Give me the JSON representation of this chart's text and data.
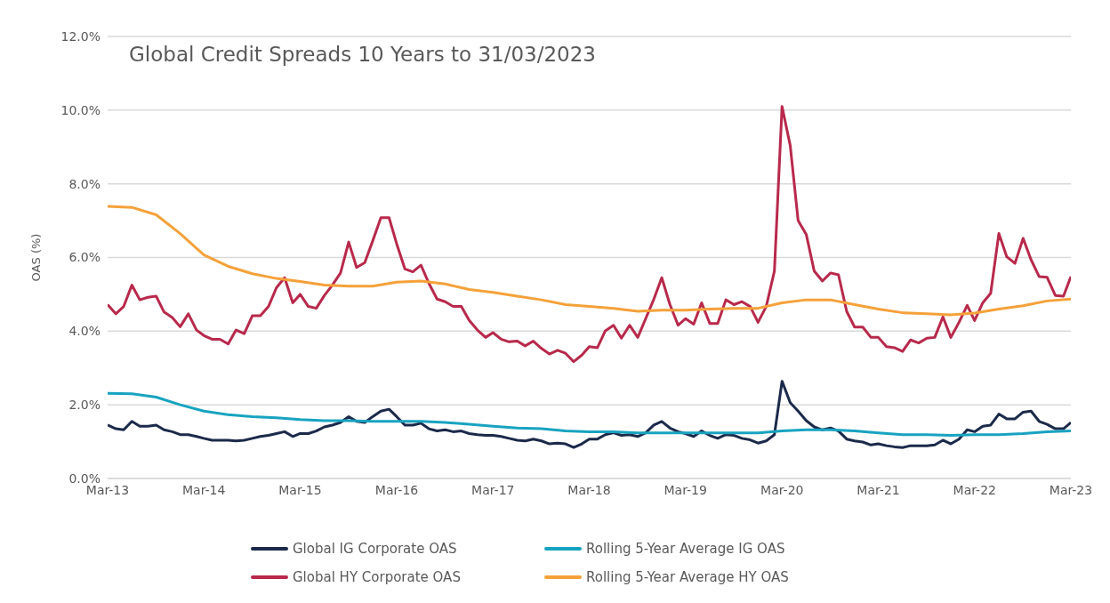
{
  "chart_data": {
    "type": "line",
    "title": "Global Credit Spreads 10 Years to 31/03/2023",
    "ylabel": "OAS (%)",
    "x": [
      "2013-03",
      "2013-04",
      "2013-05",
      "2013-06",
      "2013-07",
      "2013-08",
      "2013-09",
      "2013-10",
      "2013-11",
      "2013-12",
      "2014-01",
      "2014-02",
      "2014-03",
      "2014-04",
      "2014-05",
      "2014-06",
      "2014-07",
      "2014-08",
      "2014-09",
      "2014-10",
      "2014-11",
      "2014-12",
      "2015-01",
      "2015-02",
      "2015-03",
      "2015-04",
      "2015-05",
      "2015-06",
      "2015-07",
      "2015-08",
      "2015-09",
      "2015-10",
      "2015-11",
      "2015-12",
      "2016-01",
      "2016-02",
      "2016-03",
      "2016-04",
      "2016-05",
      "2016-06",
      "2016-07",
      "2016-08",
      "2016-09",
      "2016-10",
      "2016-11",
      "2016-12",
      "2017-01",
      "2017-02",
      "2017-03",
      "2017-04",
      "2017-05",
      "2017-06",
      "2017-07",
      "2017-08",
      "2017-09",
      "2017-10",
      "2017-11",
      "2017-12",
      "2018-01",
      "2018-02",
      "2018-03",
      "2018-04",
      "2018-05",
      "2018-06",
      "2018-07",
      "2018-08",
      "2018-09",
      "2018-10",
      "2018-11",
      "2018-12",
      "2019-01",
      "2019-02",
      "2019-03",
      "2019-04",
      "2019-05",
      "2019-06",
      "2019-07",
      "2019-08",
      "2019-09",
      "2019-10",
      "2019-11",
      "2019-12",
      "2020-01",
      "2020-02",
      "2020-03",
      "2020-04",
      "2020-05",
      "2020-06",
      "2020-07",
      "2020-08",
      "2020-09",
      "2020-10",
      "2020-11",
      "2020-12",
      "2021-01",
      "2021-02",
      "2021-03",
      "2021-04",
      "2021-05",
      "2021-06",
      "2021-07",
      "2021-08",
      "2021-09",
      "2021-10",
      "2021-11",
      "2021-12",
      "2022-01",
      "2022-02",
      "2022-03",
      "2022-04",
      "2022-05",
      "2022-06",
      "2022-07",
      "2022-08",
      "2022-09",
      "2022-10",
      "2022-11",
      "2022-12",
      "2023-01",
      "2023-02",
      "2023-03"
    ],
    "series": [
      {
        "name": "Global IG Corporate OAS",
        "color": "#1b2a4a",
        "values": [
          1.45,
          1.35,
          1.32,
          1.55,
          1.42,
          1.42,
          1.45,
          1.32,
          1.27,
          1.19,
          1.19,
          1.14,
          1.09,
          1.04,
          1.04,
          1.04,
          1.02,
          1.04,
          1.09,
          1.14,
          1.17,
          1.22,
          1.27,
          1.14,
          1.22,
          1.22,
          1.29,
          1.4,
          1.45,
          1.52,
          1.68,
          1.55,
          1.52,
          1.68,
          1.83,
          1.88,
          1.68,
          1.45,
          1.45,
          1.5,
          1.35,
          1.29,
          1.32,
          1.27,
          1.29,
          1.22,
          1.19,
          1.17,
          1.17,
          1.14,
          1.09,
          1.04,
          1.02,
          1.07,
          1.02,
          0.94,
          0.96,
          0.94,
          0.84,
          0.94,
          1.07,
          1.07,
          1.19,
          1.24,
          1.17,
          1.19,
          1.14,
          1.24,
          1.45,
          1.55,
          1.37,
          1.27,
          1.22,
          1.14,
          1.29,
          1.17,
          1.09,
          1.19,
          1.17,
          1.09,
          1.05,
          0.96,
          1.02,
          1.19,
          2.64,
          2.06,
          1.83,
          1.57,
          1.4,
          1.32,
          1.37,
          1.29,
          1.07,
          1.02,
          0.99,
          0.91,
          0.94,
          0.89,
          0.86,
          0.84,
          0.89,
          0.89,
          0.89,
          0.91,
          1.04,
          0.94,
          1.07,
          1.32,
          1.27,
          1.42,
          1.45,
          1.75,
          1.62,
          1.62,
          1.8,
          1.83,
          1.55,
          1.47,
          1.35,
          1.35,
          1.52
        ]
      },
      {
        "name": "Rolling 5-Year Average IG OAS",
        "color": "#18a3c0",
        "x": [
          "2013-03",
          "2013-06",
          "2013-09",
          "2013-12",
          "2014-03",
          "2014-06",
          "2014-09",
          "2014-12",
          "2015-03",
          "2015-06",
          "2015-09",
          "2015-12",
          "2016-03",
          "2016-06",
          "2016-09",
          "2016-12",
          "2017-03",
          "2017-06",
          "2017-09",
          "2017-12",
          "2018-03",
          "2018-06",
          "2018-09",
          "2018-12",
          "2019-03",
          "2019-06",
          "2019-09",
          "2019-12",
          "2020-03",
          "2020-06",
          "2020-09",
          "2020-12",
          "2021-03",
          "2021-06",
          "2021-09",
          "2021-12",
          "2022-03",
          "2022-06",
          "2022-09",
          "2022-12",
          "2023-03"
        ],
        "values": [
          2.31,
          2.3,
          2.21,
          2.0,
          1.83,
          1.73,
          1.68,
          1.65,
          1.6,
          1.57,
          1.57,
          1.55,
          1.55,
          1.55,
          1.52,
          1.47,
          1.42,
          1.37,
          1.35,
          1.29,
          1.27,
          1.27,
          1.24,
          1.24,
          1.24,
          1.24,
          1.24,
          1.24,
          1.29,
          1.32,
          1.32,
          1.29,
          1.24,
          1.19,
          1.19,
          1.17,
          1.19,
          1.19,
          1.22,
          1.27,
          1.29
        ]
      },
      {
        "name": "Global HY Corporate OAS",
        "color": "#b8294b",
        "values": [
          4.72,
          4.47,
          4.67,
          5.25,
          4.85,
          4.92,
          4.95,
          4.52,
          4.37,
          4.12,
          4.47,
          4.03,
          3.88,
          3.78,
          3.78,
          3.65,
          4.03,
          3.93,
          4.42,
          4.42,
          4.67,
          5.18,
          5.45,
          4.77,
          5.0,
          4.67,
          4.62,
          4.97,
          5.25,
          5.58,
          6.42,
          5.73,
          5.86,
          6.45,
          7.08,
          7.08,
          6.37,
          5.69,
          5.61,
          5.79,
          5.3,
          4.87,
          4.8,
          4.67,
          4.67,
          4.29,
          4.03,
          3.83,
          3.96,
          3.78,
          3.71,
          3.73,
          3.6,
          3.73,
          3.53,
          3.38,
          3.48,
          3.4,
          3.17,
          3.35,
          3.58,
          3.55,
          4.01,
          4.16,
          3.81,
          4.16,
          3.83,
          4.34,
          4.87,
          5.45,
          4.72,
          4.16,
          4.34,
          4.19,
          4.77,
          4.21,
          4.21,
          4.85,
          4.72,
          4.8,
          4.67,
          4.24,
          4.67,
          5.63,
          10.1,
          9.04,
          7.0,
          6.62,
          5.63,
          5.36,
          5.58,
          5.53,
          4.54,
          4.11,
          4.11,
          3.83,
          3.83,
          3.58,
          3.55,
          3.45,
          3.76,
          3.68,
          3.81,
          3.83,
          4.39,
          3.83,
          4.24,
          4.7,
          4.29,
          4.77,
          5.03,
          6.65,
          6.02,
          5.84,
          6.52,
          5.94,
          5.48,
          5.46,
          4.97,
          4.95,
          5.48
        ]
      },
      {
        "name": "Rolling 5-Year Average HY OAS",
        "color": "#f5a13a",
        "x": [
          "2013-03",
          "2013-06",
          "2013-09",
          "2013-12",
          "2014-03",
          "2014-06",
          "2014-09",
          "2014-12",
          "2015-03",
          "2015-06",
          "2015-09",
          "2015-12",
          "2016-03",
          "2016-06",
          "2016-09",
          "2016-12",
          "2017-03",
          "2017-06",
          "2017-09",
          "2017-12",
          "2018-03",
          "2018-06",
          "2018-09",
          "2018-12",
          "2019-03",
          "2019-06",
          "2019-09",
          "2019-12",
          "2020-03",
          "2020-06",
          "2020-09",
          "2020-12",
          "2021-03",
          "2021-06",
          "2021-09",
          "2021-12",
          "2022-03",
          "2022-06",
          "2022-09",
          "2022-12",
          "2023-03"
        ],
        "values": [
          7.39,
          7.36,
          7.16,
          6.65,
          6.07,
          5.76,
          5.56,
          5.43,
          5.35,
          5.25,
          5.22,
          5.22,
          5.33,
          5.36,
          5.28,
          5.13,
          5.05,
          4.95,
          4.85,
          4.72,
          4.67,
          4.62,
          4.54,
          4.57,
          4.57,
          4.6,
          4.62,
          4.62,
          4.77,
          4.85,
          4.85,
          4.72,
          4.6,
          4.5,
          4.47,
          4.44,
          4.49,
          4.6,
          4.69,
          4.82,
          4.87
        ]
      }
    ],
    "xlim": [
      "2013-03",
      "2023-03"
    ],
    "xticks": [
      {
        "value": "2013-03",
        "label": "Mar-13"
      },
      {
        "value": "2014-03",
        "label": "Mar-14"
      },
      {
        "value": "2015-03",
        "label": "Mar-15"
      },
      {
        "value": "2016-03",
        "label": "Mar-16"
      },
      {
        "value": "2017-03",
        "label": "Mar-17"
      },
      {
        "value": "2018-03",
        "label": "Mar-18"
      },
      {
        "value": "2019-03",
        "label": "Mar-19"
      },
      {
        "value": "2020-03",
        "label": "Mar-20"
      },
      {
        "value": "2021-03",
        "label": "Mar-21"
      },
      {
        "value": "2022-03",
        "label": "Mar-22"
      },
      {
        "value": "2023-03",
        "label": "Mar-23"
      }
    ],
    "ylim": [
      0,
      12
    ],
    "yticks": [
      {
        "value": 0,
        "label": "0.0%"
      },
      {
        "value": 2,
        "label": "2.0%"
      },
      {
        "value": 4,
        "label": "4.0%"
      },
      {
        "value": 6,
        "label": "6.0%"
      },
      {
        "value": 8,
        "label": "8.0%"
      },
      {
        "value": 10,
        "label": "10.0%"
      },
      {
        "value": 12,
        "label": "12.0%"
      }
    ],
    "grid": "y",
    "legend": "bottom",
    "line_style": "solid"
  }
}
